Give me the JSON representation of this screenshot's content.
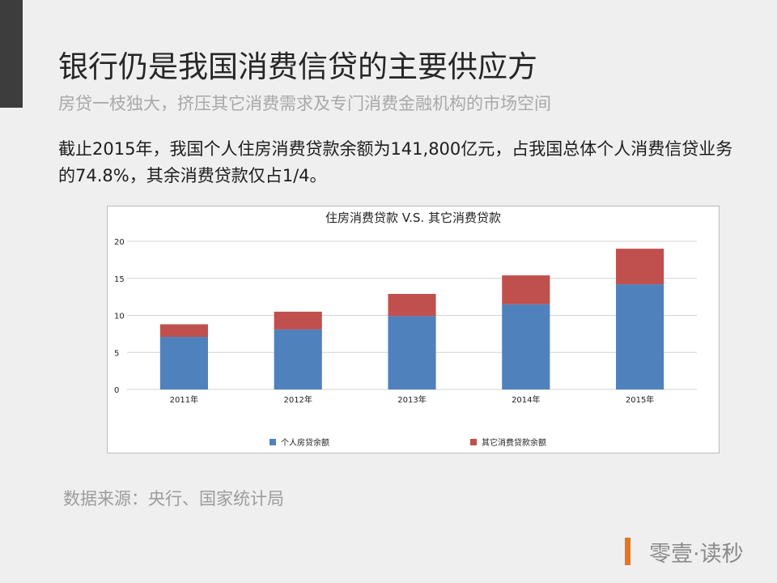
{
  "slide": {
    "title": "银行仍是我国消费信贷的主要供应方",
    "subtitle": "房贷一枝独大，挤压其它消费需求及专门消费金融机构的市场空间",
    "body": "截止2015年，我国个人住房消费贷款余额为141,800亿元，占我国总体个人消费信贷业务的74.8%，其余消费贷款仅占1/4。",
    "source": "数据来源：央行、国家统计局",
    "brand": "零壹·读秒"
  },
  "colors": {
    "accent_bar": "#3d3d3d",
    "brand_accent": "#e8741e",
    "series_housing": "#4f81bd",
    "series_other": "#c0504d"
  },
  "chart_data": {
    "type": "bar",
    "stacked": true,
    "title": "住房消费贷款 V.S. 其它消费贷款",
    "categories": [
      "2011年",
      "2012年",
      "2013年",
      "2014年",
      "2015年"
    ],
    "series": [
      {
        "name": "个人房贷余额",
        "color": "#4f81bd",
        "values": [
          7.1,
          8.1,
          9.9,
          11.5,
          14.2
        ]
      },
      {
        "name": "其它消费贷款余额",
        "color": "#c0504d",
        "values": [
          1.7,
          2.4,
          3.0,
          3.9,
          4.8
        ]
      }
    ],
    "ylim": [
      0,
      20
    ],
    "yticks": [
      0,
      5,
      10,
      15,
      20
    ],
    "grid": true,
    "legend": "bottom"
  }
}
